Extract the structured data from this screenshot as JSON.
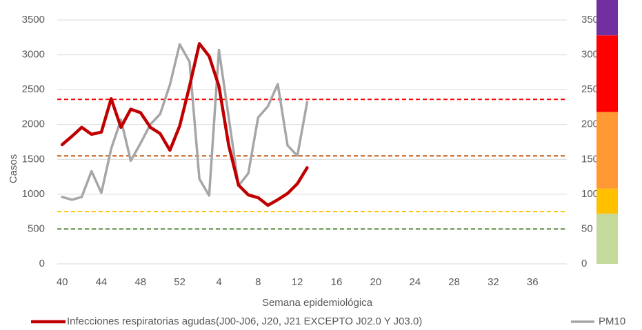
{
  "chart_data": {
    "type": "line",
    "x_label": "Semana epidemiológica",
    "y_label": "Casos",
    "categories": [
      40,
      null,
      null,
      null,
      44,
      null,
      null,
      null,
      48,
      null,
      null,
      null,
      52,
      null,
      null,
      null,
      4,
      null,
      null,
      null,
      8,
      null,
      null,
      null,
      12,
      null,
      null,
      null,
      16,
      null,
      null,
      null,
      20,
      null,
      null,
      null,
      24,
      null,
      null,
      null,
      28,
      null,
      null,
      null,
      32,
      null,
      null,
      null,
      36,
      null,
      null,
      null
    ],
    "ylim": [
      0,
      3500
    ],
    "yticks": [
      0,
      500,
      1000,
      1500,
      2000,
      2500,
      3000,
      3500
    ],
    "y2lim": [
      0,
      350
    ],
    "y2ticks": [
      0,
      50,
      100,
      150,
      200,
      250,
      300,
      350
    ],
    "grid": true,
    "series": [
      {
        "name": "Infecciones respiratorias agudas(J00-J06, J20, J21 EXCEPTO J02.0 Y J03.0)",
        "color": "#c00000",
        "values": [
          1710,
          1830,
          1960,
          1860,
          1890,
          2370,
          1960,
          2220,
          2170,
          1960,
          1870,
          1630,
          1980,
          2550,
          3160,
          2980,
          2550,
          1700,
          1130,
          990,
          950,
          840,
          920,
          1010,
          1150,
          1380,
          null,
          null,
          null,
          null,
          null,
          null,
          null,
          null,
          null,
          null,
          null,
          null,
          null,
          null,
          null,
          null,
          null,
          null,
          null,
          null,
          null,
          null,
          null,
          null,
          null,
          null
        ]
      },
      {
        "name": "PM10",
        "color": "#a6a6a6",
        "axis": "y2",
        "values": [
          96,
          92,
          96,
          133,
          102,
          165,
          207,
          148,
          173,
          200,
          215,
          257,
          315,
          290,
          122,
          98,
          307,
          210,
          112,
          130,
          210,
          226,
          258,
          170,
          155,
          232,
          null,
          null,
          null,
          null,
          null,
          null,
          null,
          null,
          null,
          null,
          null,
          null,
          null,
          null,
          null,
          null,
          null,
          null,
          null,
          null,
          null,
          null,
          null,
          null,
          null,
          null
        ]
      }
    ],
    "reference_lines": [
      {
        "value": 50,
        "color": "#548235",
        "axis": "y2"
      },
      {
        "value": 75,
        "color": "#ffc000",
        "axis": "y2"
      },
      {
        "value": 155,
        "color": "#c55a11",
        "axis": "y2"
      },
      {
        "value": 236,
        "color": "#ff0000",
        "axis": "y2"
      }
    ],
    "bands": [
      {
        "from": 0,
        "to": 72,
        "color": "#c5d99a"
      },
      {
        "from": 72,
        "to": 108,
        "color": "#ffc000"
      },
      {
        "from": 108,
        "to": 218,
        "color": "#ff9933"
      },
      {
        "from": 218,
        "to": 328,
        "color": "#ff0000"
      },
      {
        "from": 328,
        "to": 380,
        "color": "#7030a0"
      }
    ]
  }
}
